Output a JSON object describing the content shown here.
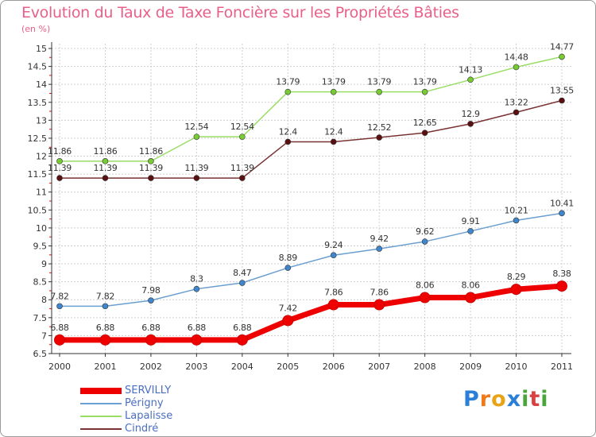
{
  "title": "Evolution du Taux de Taxe Foncière sur les Propriétés Bâties",
  "unit_label": "(en %)",
  "logo_text": "Proxiti",
  "colors": {
    "title": "#e8608a",
    "grid": "#cfcfcf",
    "axis": "#333333",
    "tick_red": "#e01010"
  },
  "chart_data": {
    "type": "line",
    "title": "Evolution du Taux de Taxe Foncière sur les Propriétés Bâties",
    "ylabel": "(en %)",
    "xlabel": "",
    "x": [
      "2000",
      "2001",
      "2002",
      "2003",
      "2004",
      "2005",
      "2006",
      "2007",
      "2008",
      "2009",
      "2010",
      "2011"
    ],
    "ylim": [
      6.5,
      15
    ],
    "yticks": [
      "6.5",
      "7",
      "7.5",
      "8",
      "8.5",
      "9",
      "9.5",
      "10",
      "10.5",
      "11",
      "11.5",
      "12",
      "12.5",
      "13",
      "13.5",
      "14",
      "14.5",
      "15"
    ],
    "grid": true,
    "legend_position": "bottom-left",
    "series": [
      {
        "name": "SERVILLY",
        "color": "#ee0000",
        "marker": "#ee0000",
        "thick": true,
        "values": [
          6.88,
          6.88,
          6.88,
          6.88,
          6.88,
          7.42,
          7.86,
          7.86,
          8.06,
          8.06,
          8.29,
          8.38
        ],
        "labels": [
          "6.88",
          "6.88",
          "6.88",
          "6.88",
          "6.88",
          "7.42",
          "7.86",
          "7.86",
          "8.06",
          "8.06",
          "8.29",
          "8.38"
        ]
      },
      {
        "name": "Périgny",
        "color": "#6a9fd0",
        "marker": "#3f86cc",
        "thick": false,
        "values": [
          7.82,
          7.82,
          7.98,
          8.3,
          8.47,
          8.89,
          9.24,
          9.42,
          9.62,
          9.91,
          10.21,
          10.41
        ],
        "labels": [
          "7.82",
          "7.82",
          "7.98",
          "8.3",
          "8.47",
          "8.89",
          "9.24",
          "9.42",
          "9.62",
          "9.91",
          "10.21",
          "10.41"
        ]
      },
      {
        "name": "Lapalisse",
        "color": "#99dd66",
        "marker": "#77cc33",
        "thick": false,
        "values": [
          11.86,
          11.86,
          11.86,
          12.54,
          12.54,
          13.79,
          13.79,
          13.79,
          13.79,
          14.13,
          14.48,
          14.77
        ],
        "labels": [
          "11.86",
          "11.86",
          "11.86",
          "12.54",
          "12.54",
          "13.79",
          "13.79",
          "13.79",
          "13.79",
          "14.13",
          "14.48",
          "14.77"
        ]
      },
      {
        "name": "Cindré",
        "color": "#7a3333",
        "marker": "#5a1010",
        "thick": false,
        "values": [
          11.39,
          11.39,
          11.39,
          11.39,
          11.39,
          12.4,
          12.4,
          12.52,
          12.65,
          12.9,
          13.22,
          13.55
        ],
        "labels": [
          "11.39",
          "11.39",
          "11.39",
          "11.39",
          "11.39",
          "12.4",
          "12.4",
          "12.52",
          "12.65",
          "12.9",
          "13.22",
          "13.55"
        ]
      }
    ]
  }
}
